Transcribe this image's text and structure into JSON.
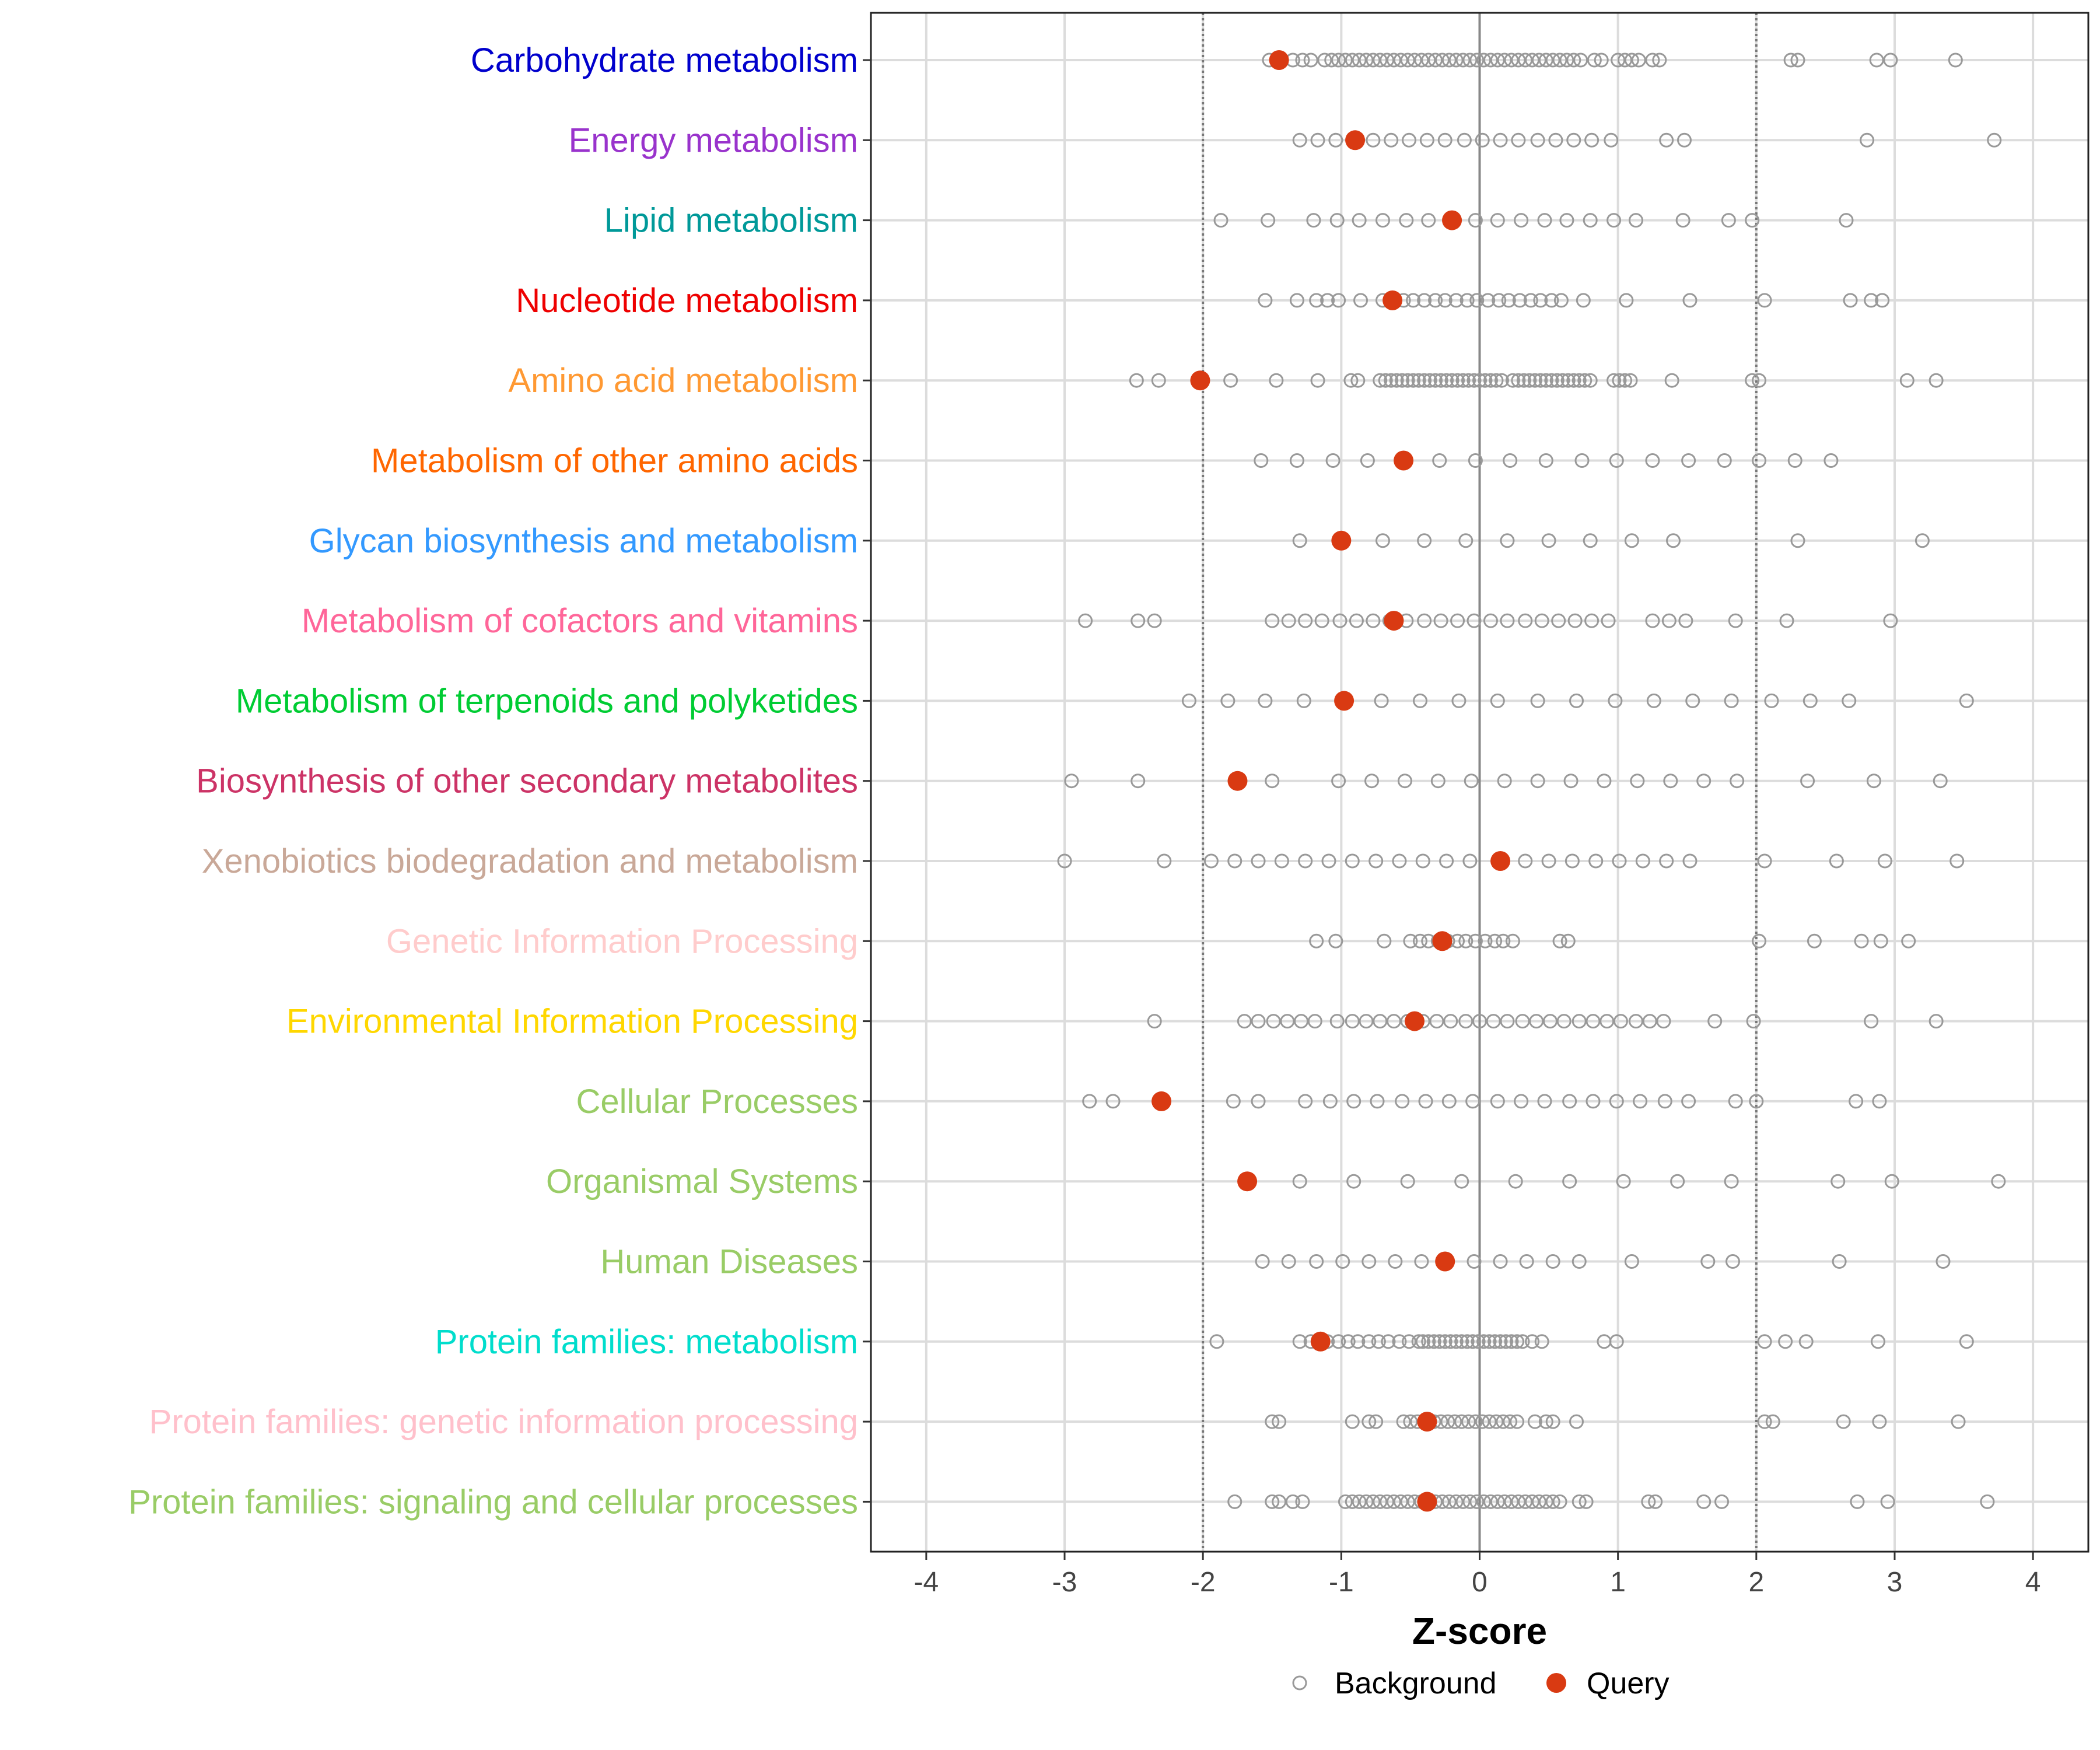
{
  "chart_data": {
    "type": "scatter",
    "title": "",
    "xlabel": "Z-score",
    "ylabel": "",
    "xlim": [
      -4.4,
      4.4
    ],
    "xticks": [
      -4,
      -3,
      -2,
      -1,
      0,
      1,
      2,
      3,
      4
    ],
    "xtick_labels": [
      "-4",
      "-3",
      "-2",
      "-1",
      "0",
      "1",
      "2",
      "3",
      "4"
    ],
    "reference_lines": [
      -2,
      2
    ],
    "zero_line": 0,
    "grid": true,
    "legend": {
      "position": "bottom",
      "entries": [
        {
          "label": "Background",
          "marker": "open-circle",
          "color": "#999999"
        },
        {
          "label": "Query",
          "marker": "filled-circle",
          "color": "#D93A12"
        }
      ]
    },
    "categories": [
      {
        "name": "Carbohydrate metabolism",
        "color": "#0000CC",
        "query": -1.45,
        "background": [
          -1.52,
          -1.45,
          -1.35,
          -1.28,
          -1.22,
          -1.12,
          -1.07,
          -1.02,
          -0.97,
          -0.92,
          -0.87,
          -0.82,
          -0.77,
          -0.72,
          -0.67,
          -0.62,
          -0.57,
          -0.52,
          -0.47,
          -0.42,
          -0.37,
          -0.32,
          -0.27,
          -0.22,
          -0.17,
          -0.12,
          -0.07,
          -0.02,
          0.03,
          0.08,
          0.13,
          0.18,
          0.23,
          0.28,
          0.33,
          0.38,
          0.43,
          0.48,
          0.53,
          0.58,
          0.63,
          0.68,
          0.73,
          0.83,
          0.88,
          1.0,
          1.05,
          1.1,
          1.15,
          1.25,
          1.3,
          2.25,
          2.3,
          2.87,
          2.97,
          3.44
        ]
      },
      {
        "name": "Energy metabolism",
        "color": "#9933CC",
        "query": -0.9,
        "background": [
          -1.3,
          -1.17,
          -1.04,
          -0.9,
          -0.77,
          -0.64,
          -0.51,
          -0.38,
          -0.25,
          -0.11,
          0.02,
          0.15,
          0.28,
          0.42,
          0.55,
          0.68,
          0.81,
          0.95,
          1.35,
          1.48,
          2.8,
          3.72
        ]
      },
      {
        "name": "Lipid metabolism",
        "color": "#009999",
        "query": -0.2,
        "background": [
          -1.87,
          -1.53,
          -1.2,
          -1.03,
          -0.87,
          -0.7,
          -0.53,
          -0.37,
          -0.2,
          -0.03,
          0.13,
          0.3,
          0.47,
          0.63,
          0.8,
          0.97,
          1.13,
          1.47,
          1.8,
          1.97,
          2.65
        ]
      },
      {
        "name": "Nucleotide metabolism",
        "color": "#EE0000",
        "query": -0.63,
        "background": [
          -1.55,
          -1.32,
          -1.18,
          -1.1,
          -1.02,
          -0.86,
          -0.7,
          -0.63,
          -0.55,
          -0.48,
          -0.4,
          -0.32,
          -0.25,
          -0.17,
          -0.09,
          -0.02,
          0.06,
          0.14,
          0.21,
          0.29,
          0.37,
          0.44,
          0.52,
          0.59,
          0.75,
          1.06,
          1.52,
          2.06,
          2.68,
          2.83,
          2.91
        ]
      },
      {
        "name": "Amino acid metabolism",
        "color": "#FF9933",
        "query": -2.02,
        "background": [
          -2.48,
          -2.32,
          -2.02,
          -1.8,
          -1.47,
          -1.17,
          -0.93,
          -0.88,
          -0.72,
          -0.68,
          -0.64,
          -0.6,
          -0.56,
          -0.52,
          -0.48,
          -0.44,
          -0.4,
          -0.36,
          -0.32,
          -0.28,
          -0.24,
          -0.2,
          -0.16,
          -0.12,
          -0.08,
          -0.04,
          0.0,
          0.04,
          0.08,
          0.12,
          0.16,
          0.24,
          0.28,
          0.32,
          0.36,
          0.4,
          0.44,
          0.48,
          0.52,
          0.56,
          0.6,
          0.64,
          0.68,
          0.72,
          0.76,
          0.8,
          0.97,
          1.01,
          1.05,
          1.09,
          1.39,
          1.97,
          2.02,
          3.09,
          3.3
        ]
      },
      {
        "name": "Metabolism of other amino acids",
        "color": "#FF6600",
        "query": -0.55,
        "background": [
          -1.58,
          -1.32,
          -1.06,
          -0.81,
          -0.55,
          -0.29,
          -0.03,
          0.22,
          0.48,
          0.74,
          0.99,
          1.25,
          1.51,
          1.77,
          2.02,
          2.28,
          2.54
        ]
      },
      {
        "name": "Glycan biosynthesis and metabolism",
        "color": "#3399FF",
        "query": -1.0,
        "background": [
          -1.3,
          -1.0,
          -0.7,
          -0.4,
          -0.1,
          0.2,
          0.5,
          0.8,
          1.1,
          1.4,
          2.3,
          3.2
        ]
      },
      {
        "name": "Metabolism of cofactors and vitamins",
        "color": "#FF6699",
        "query": -0.62,
        "background": [
          -2.85,
          -2.47,
          -2.35,
          -1.5,
          -1.38,
          -1.26,
          -1.14,
          -1.01,
          -0.89,
          -0.77,
          -0.65,
          -0.53,
          -0.4,
          -0.28,
          -0.16,
          -0.04,
          0.08,
          0.2,
          0.33,
          0.45,
          0.57,
          0.69,
          0.81,
          0.93,
          1.25,
          1.37,
          1.49,
          1.85,
          2.22,
          2.97
        ]
      },
      {
        "name": "Metabolism of terpenoids and polyketides",
        "color": "#00CC33",
        "query": -0.98,
        "background": [
          -2.1,
          -1.82,
          -1.55,
          -1.27,
          -0.99,
          -0.71,
          -0.43,
          -0.15,
          0.13,
          0.42,
          0.7,
          0.98,
          1.26,
          1.54,
          1.82,
          2.11,
          2.39,
          2.67,
          3.52
        ]
      },
      {
        "name": "Biosynthesis of other secondary metabolites",
        "color": "#CC3366",
        "query": -1.75,
        "background": [
          -2.95,
          -2.47,
          -1.75,
          -1.5,
          -1.02,
          -0.78,
          -0.54,
          -0.3,
          -0.06,
          0.18,
          0.42,
          0.66,
          0.9,
          1.14,
          1.38,
          1.62,
          1.86,
          2.37,
          2.85,
          3.33
        ]
      },
      {
        "name": "Xenobiotics biodegradation and metabolism",
        "color": "#C9A898",
        "query": 0.15,
        "background": [
          -3.0,
          -2.28,
          -1.94,
          -1.77,
          -1.6,
          -1.43,
          -1.26,
          -1.09,
          -0.92,
          -0.75,
          -0.58,
          -0.41,
          -0.24,
          -0.07,
          0.15,
          0.33,
          0.5,
          0.67,
          0.84,
          1.01,
          1.18,
          1.35,
          1.52,
          2.06,
          2.58,
          2.93,
          3.45
        ]
      },
      {
        "name": "Genetic Information Processing",
        "color": "#FFCCCC",
        "query": -0.27,
        "background": [
          -1.18,
          -1.04,
          -0.69,
          -0.5,
          -0.43,
          -0.37,
          -0.3,
          -0.23,
          -0.16,
          -0.1,
          -0.03,
          0.04,
          0.11,
          0.17,
          0.24,
          0.58,
          0.64,
          2.02,
          2.42,
          2.76,
          2.9,
          3.1
        ]
      },
      {
        "name": "Environmental Information Processing",
        "color": "#FFD700",
        "query": -0.47,
        "background": [
          -2.35,
          -1.7,
          -1.6,
          -1.49,
          -1.39,
          -1.29,
          -1.19,
          -1.03,
          -0.92,
          -0.82,
          -0.72,
          -0.62,
          -0.52,
          -0.41,
          -0.31,
          -0.21,
          -0.1,
          0.0,
          0.1,
          0.2,
          0.31,
          0.41,
          0.51,
          0.61,
          0.72,
          0.82,
          0.92,
          1.02,
          1.13,
          1.23,
          1.33,
          1.7,
          1.98,
          2.83,
          3.3
        ]
      },
      {
        "name": "Cellular Processes",
        "color": "#99CC66",
        "query": -2.3,
        "background": [
          -2.82,
          -2.65,
          -2.3,
          -1.78,
          -1.6,
          -1.26,
          -1.08,
          -0.91,
          -0.74,
          -0.56,
          -0.39,
          -0.22,
          -0.05,
          0.13,
          0.3,
          0.47,
          0.65,
          0.82,
          0.99,
          1.16,
          1.34,
          1.51,
          1.85,
          2.0,
          2.72,
          2.89
        ]
      },
      {
        "name": "Organismal Systems",
        "color": "#99CC66",
        "query": -1.68,
        "background": [
          -1.3,
          -0.91,
          -0.52,
          -0.13,
          0.26,
          0.65,
          1.04,
          1.43,
          1.82,
          2.59,
          2.98,
          3.75
        ]
      },
      {
        "name": "Human Diseases",
        "color": "#99CC66",
        "query": -0.25,
        "background": [
          -1.57,
          -1.38,
          -1.18,
          -0.99,
          -0.8,
          -0.61,
          -0.42,
          -0.25,
          -0.04,
          0.15,
          0.34,
          0.53,
          0.72,
          1.1,
          1.65,
          1.83,
          2.6,
          3.35
        ]
      },
      {
        "name": "Protein families: metabolism",
        "color": "#00DDCC",
        "query": -1.15,
        "background": [
          -1.9,
          -1.3,
          -1.22,
          -1.15,
          -1.1,
          -1.02,
          -0.95,
          -0.88,
          -0.8,
          -0.73,
          -0.66,
          -0.58,
          -0.51,
          -0.44,
          -0.41,
          -0.37,
          -0.33,
          -0.29,
          -0.25,
          -0.21,
          -0.17,
          -0.13,
          -0.09,
          -0.05,
          -0.01,
          0.03,
          0.07,
          0.11,
          0.15,
          0.19,
          0.23,
          0.27,
          0.31,
          0.38,
          0.45,
          0.9,
          0.99,
          2.06,
          2.21,
          2.36,
          2.88,
          3.52
        ]
      },
      {
        "name": "Protein families: genetic information processing",
        "color": "#FFC0CB",
        "query": -0.38,
        "background": [
          -1.5,
          -1.45,
          -0.92,
          -0.8,
          -0.75,
          -0.55,
          -0.5,
          -0.45,
          -0.38,
          -0.33,
          -0.28,
          -0.23,
          -0.18,
          -0.13,
          -0.08,
          -0.03,
          0.02,
          0.07,
          0.12,
          0.17,
          0.22,
          0.27,
          0.4,
          0.48,
          0.53,
          0.7,
          2.06,
          2.12,
          2.63,
          2.89,
          3.46
        ]
      },
      {
        "name": "Protein families: signaling and cellular processes",
        "color": "#99CC66",
        "query": -0.38,
        "background": [
          -1.77,
          -1.5,
          -1.45,
          -1.35,
          -1.28,
          -0.97,
          -0.92,
          -0.87,
          -0.82,
          -0.77,
          -0.72,
          -0.67,
          -0.62,
          -0.57,
          -0.52,
          -0.47,
          -0.42,
          -0.38,
          -0.32,
          -0.27,
          -0.22,
          -0.17,
          -0.12,
          -0.07,
          -0.02,
          0.03,
          0.08,
          0.13,
          0.18,
          0.23,
          0.28,
          0.33,
          0.38,
          0.43,
          0.48,
          0.53,
          0.58,
          0.72,
          0.77,
          1.22,
          1.27,
          1.62,
          1.75,
          2.73,
          2.95,
          3.67
        ]
      }
    ]
  }
}
